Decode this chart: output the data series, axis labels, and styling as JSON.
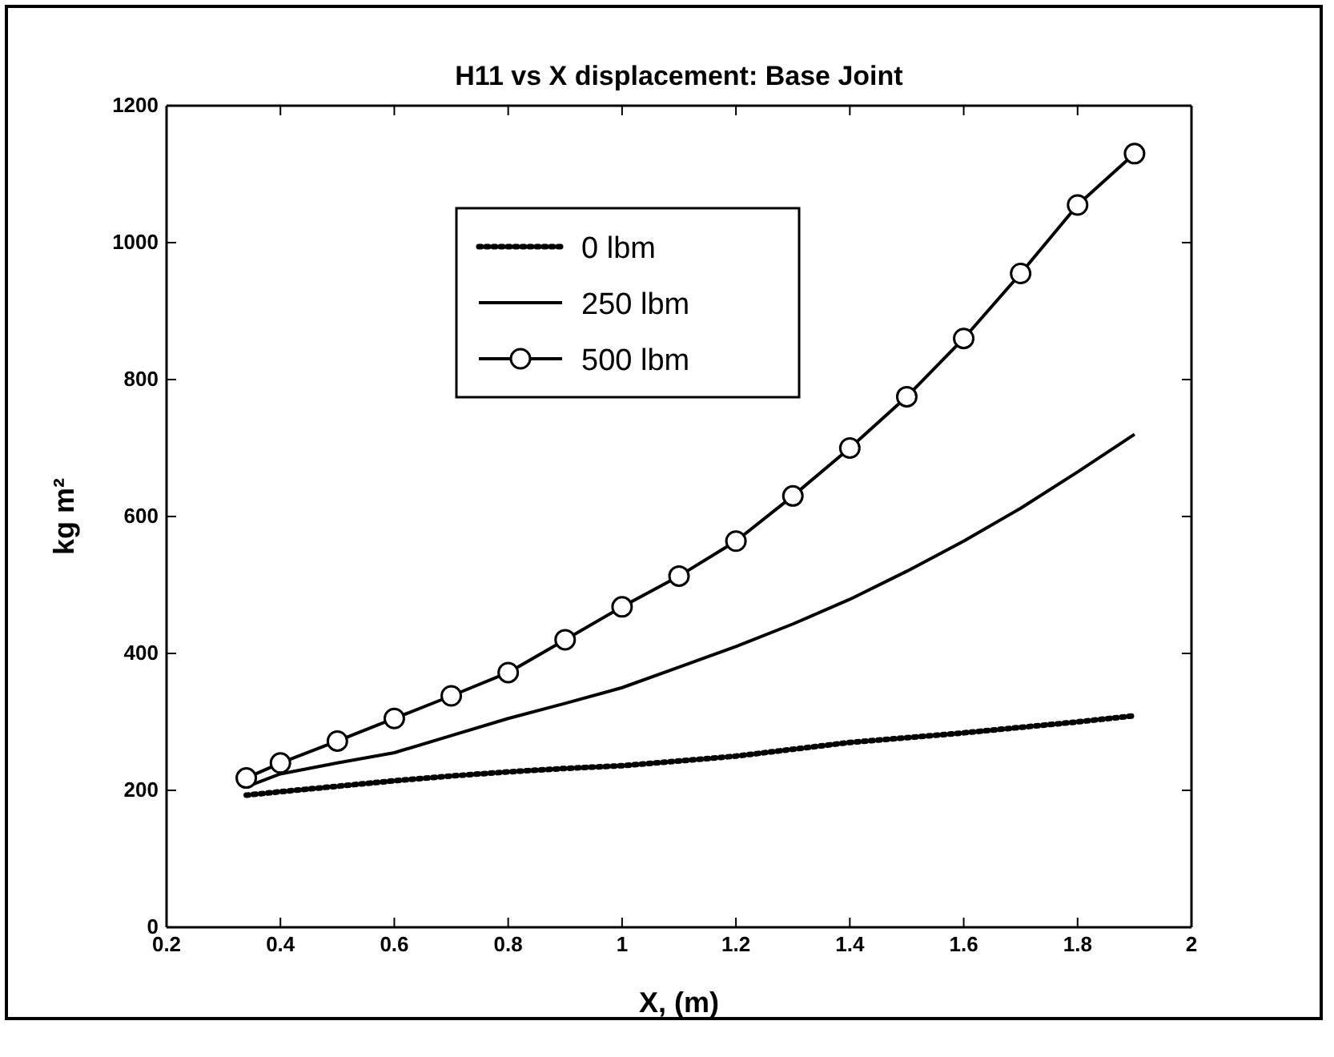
{
  "chart_data": {
    "type": "line",
    "title": "H11 vs X displacement: Base Joint",
    "xlabel": "X, (m)",
    "ylabel": "kg m²",
    "x": [
      0.34,
      0.4,
      0.5,
      0.6,
      0.7,
      0.8,
      0.9,
      1.0,
      1.1,
      1.2,
      1.3,
      1.4,
      1.5,
      1.6,
      1.7,
      1.8,
      1.9
    ],
    "series": [
      {
        "name": "0 lbm",
        "color": "#000000",
        "line_style": "dotted",
        "marker": "none",
        "values": [
          193,
          198,
          206,
          214,
          221,
          227,
          232,
          236,
          243,
          250,
          260,
          270,
          277,
          284,
          292,
          300,
          309
        ]
      },
      {
        "name": "250 lbm",
        "color": "#000000",
        "line_style": "solid",
        "marker": "none",
        "values": [
          205,
          224,
          240,
          255,
          280,
          305,
          327,
          350,
          380,
          410,
          443,
          479,
          520,
          564,
          612,
          665,
          720
        ]
      },
      {
        "name": "500 lbm",
        "color": "#000000",
        "line_style": "solid",
        "marker": "circle",
        "values": [
          218,
          240,
          272,
          305,
          338,
          372,
          420,
          468,
          513,
          564,
          630,
          700,
          775,
          860,
          955,
          1055,
          1130
        ]
      }
    ],
    "xlim": [
      0.2,
      2
    ],
    "xticks": [
      0.2,
      0.4,
      0.6,
      0.8,
      1,
      1.2,
      1.4,
      1.6,
      1.8,
      2
    ],
    "ylim": [
      0,
      1200
    ],
    "yticks": [
      0,
      200,
      400,
      600,
      800,
      1000,
      1200
    ],
    "grid": false,
    "legend": "top left"
  }
}
